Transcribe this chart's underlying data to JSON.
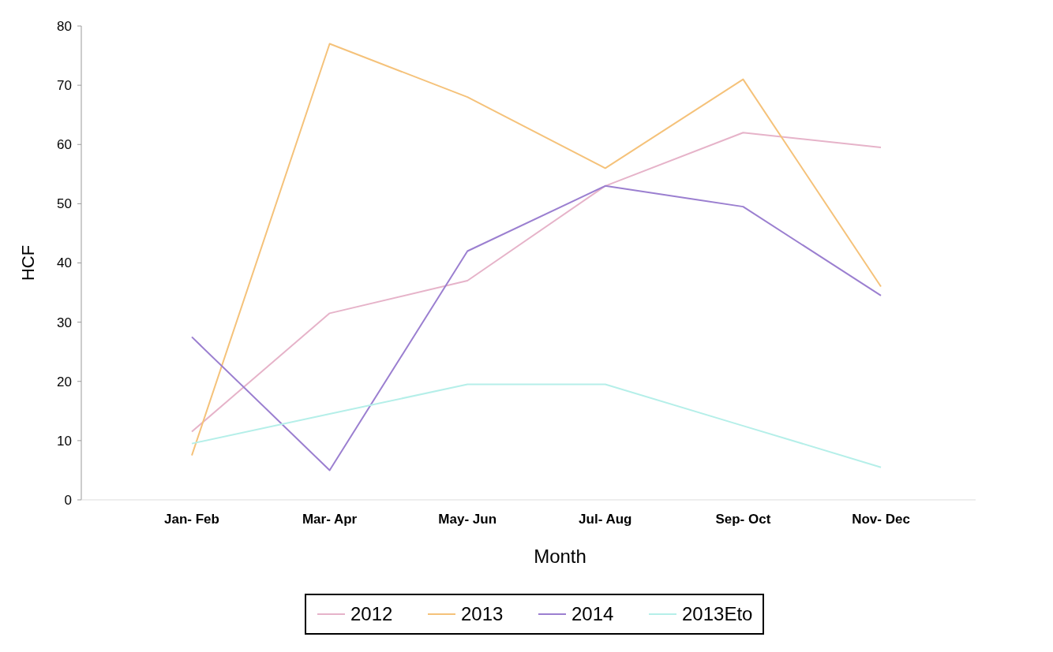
{
  "chart_data": {
    "type": "line",
    "xlabel": "Month",
    "ylabel": "HCF",
    "categories": [
      "Jan- Feb",
      "Mar- Apr",
      "May- Jun",
      "Jul- Aug",
      "Sep- Oct",
      "Nov- Dec"
    ],
    "series": [
      {
        "name": "2012",
        "color": "#e6b3c9",
        "values": [
          11.5,
          31.5,
          37,
          53,
          62,
          59.5
        ]
      },
      {
        "name": "2013",
        "color": "#f5c27a",
        "values": [
          7.5,
          77,
          68,
          56,
          71,
          36
        ]
      },
      {
        "name": "2014",
        "color": "#9b7fd0",
        "values": [
          27.5,
          5,
          42,
          53,
          49.5,
          34.5
        ]
      },
      {
        "name": "2013Eto",
        "color": "#b5efe9",
        "values": [
          9.5,
          14.5,
          19.5,
          19.5,
          12.5,
          5.5
        ]
      }
    ],
    "ylim": [
      0,
      80
    ],
    "yticks": [
      0,
      10,
      20,
      30,
      40,
      50,
      60,
      70,
      80
    ],
    "grid": false,
    "legend": "bottom"
  }
}
